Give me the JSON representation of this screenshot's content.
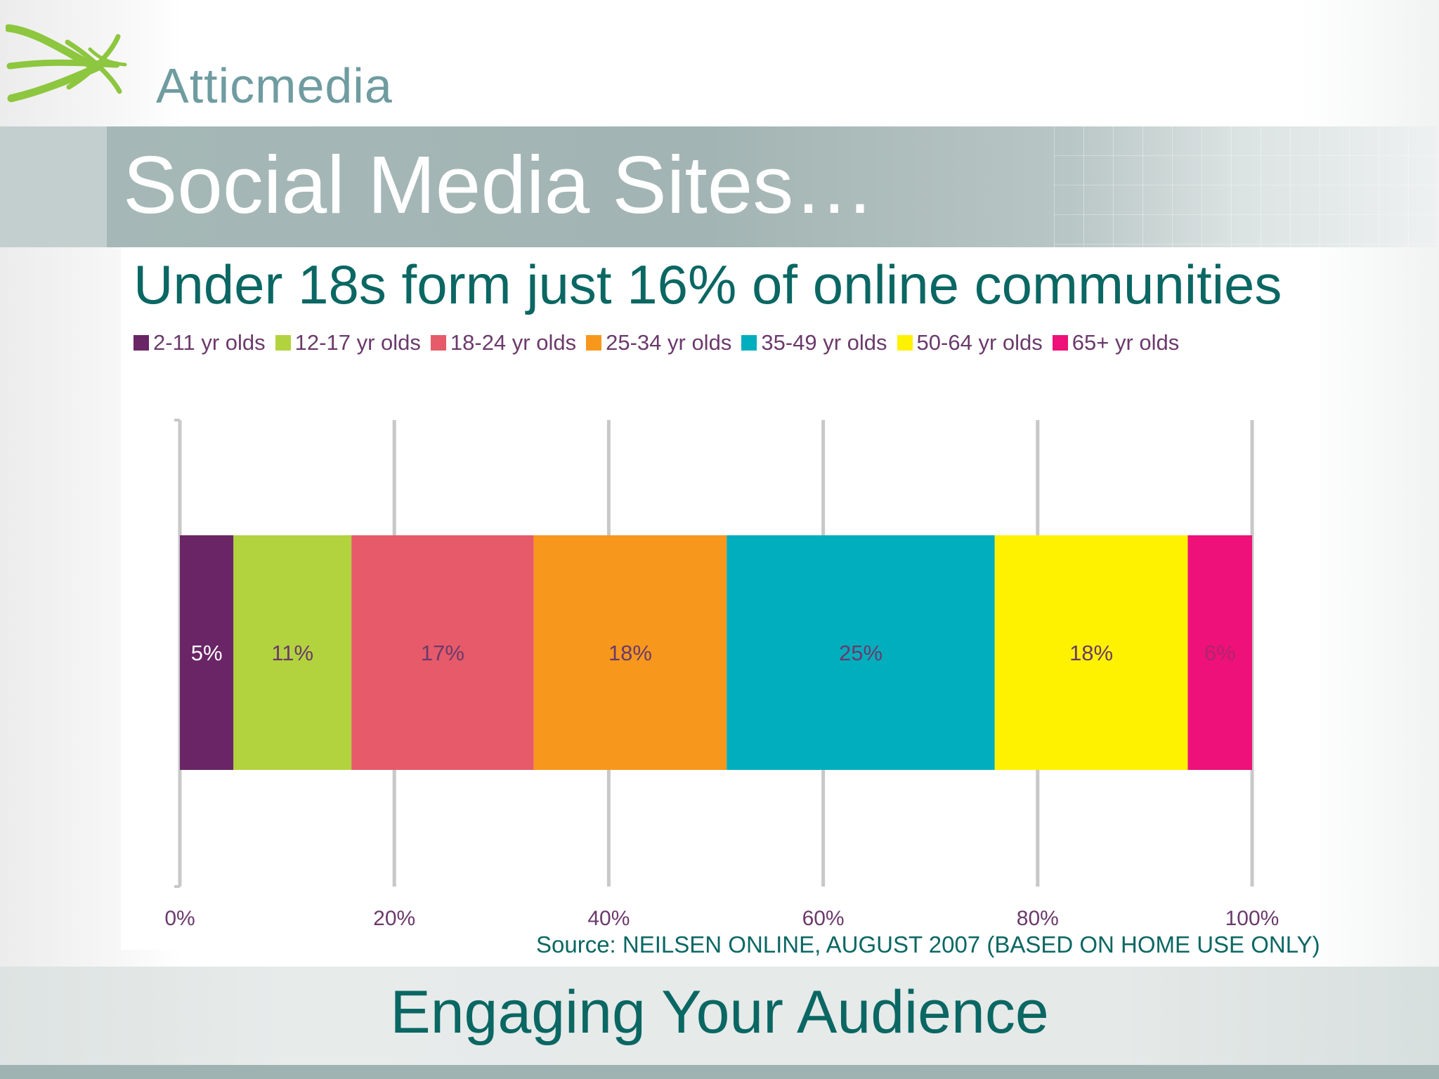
{
  "brand": {
    "name": "Atticmedia",
    "logo_color": "#8dc63f"
  },
  "slide": {
    "title": "Social Media Sites…",
    "subtitle": "Under 18s form just 16% of online communities",
    "source": "Source: NEILSEN ONLINE, AUGUST 2007 (BASED ON HOME USE ONLY)",
    "footer": "Engaging Your Audience"
  },
  "colors": {
    "accent": "#0a6763",
    "label": "#6b3a6b",
    "gridline": "#c8c8c8"
  },
  "chart_data": {
    "type": "bar",
    "orientation": "horizontal",
    "stacked": true,
    "categories": [
      ""
    ],
    "series": [
      {
        "name": "2-11 yr olds",
        "values": [
          5
        ],
        "label": "5%",
        "color": "#6a2566",
        "label_color": "#ffffff"
      },
      {
        "name": "12-17 yr olds",
        "values": [
          11
        ],
        "label": "11%",
        "color": "#b2d33e",
        "label_color": "#6b3a6b"
      },
      {
        "name": "18-24 yr olds",
        "values": [
          17
        ],
        "label": "17%",
        "color": "#e65a6a",
        "label_color": "#6b3a6b"
      },
      {
        "name": "25-34 yr olds",
        "values": [
          18
        ],
        "label": "18%",
        "color": "#f7981d",
        "label_color": "#6b3a6b"
      },
      {
        "name": "35-49 yr olds",
        "values": [
          25
        ],
        "label": "25%",
        "color": "#00aebd",
        "label_color": "#6b3a6b"
      },
      {
        "name": "50-64 yr olds",
        "values": [
          18
        ],
        "label": "18%",
        "color": "#fff200",
        "label_color": "#6b3a6b"
      },
      {
        "name": "65+ yr olds",
        "values": [
          6
        ],
        "label": "6%",
        "color": "#ed1179",
        "label_color": "#b0246b"
      }
    ],
    "x_ticks": [
      "0%",
      "20%",
      "40%",
      "60%",
      "80%",
      "100%"
    ],
    "xlim": [
      0,
      100
    ],
    "grid": true,
    "legend_position": "top",
    "title": "",
    "xlabel": "",
    "ylabel": ""
  }
}
